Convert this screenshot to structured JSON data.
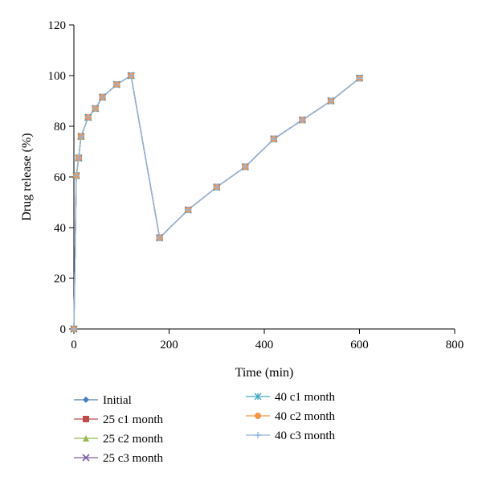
{
  "chart_data": {
    "type": "line",
    "title": "",
    "xlabel": "Time (min)",
    "ylabel": "Drug release (%)",
    "xlim": [
      0,
      800
    ],
    "ylim": [
      0,
      120
    ],
    "xticks": [
      0,
      200,
      400,
      600,
      800
    ],
    "yticks": [
      0,
      20,
      40,
      60,
      80,
      100,
      120
    ],
    "grid": false,
    "legend_position": "bottom",
    "x": [
      0,
      5,
      10,
      15,
      30,
      45,
      60,
      90,
      120,
      180,
      240,
      300,
      360,
      420,
      480,
      540,
      600
    ],
    "series": [
      {
        "name": "Initial",
        "marker": "diamond",
        "color": "#4a7ebb",
        "values": [
          0,
          60.5,
          67.5,
          76,
          83.5,
          87,
          91.5,
          96.5,
          100,
          36,
          47,
          56,
          64,
          75,
          82.5,
          90,
          99
        ]
      },
      {
        "name": "25 c1 month",
        "marker": "square",
        "color": "#be4b48",
        "values": [
          0,
          60.5,
          67.5,
          76,
          83.5,
          87,
          91.5,
          96.5,
          100,
          36,
          47,
          56,
          64,
          75,
          82.5,
          90,
          99
        ]
      },
      {
        "name": "25 c2 month",
        "marker": "triangle",
        "color": "#98b954",
        "values": [
          0,
          60.5,
          67.5,
          76,
          83.5,
          87,
          91.5,
          96.5,
          100,
          36,
          47,
          56,
          64,
          75,
          82.5,
          90,
          99
        ]
      },
      {
        "name": "25 c3 month",
        "marker": "x",
        "color": "#7d60a0",
        "values": [
          0,
          60.5,
          67.5,
          76,
          83.5,
          87,
          91.5,
          96.5,
          100,
          36,
          47,
          56,
          64,
          75,
          82.5,
          90,
          99
        ]
      },
      {
        "name": "40 c1 month",
        "marker": "star",
        "color": "#46aac5",
        "values": [
          0,
          60.5,
          67.5,
          76,
          83.5,
          87,
          91.5,
          96.5,
          100,
          36,
          47,
          56,
          64,
          75,
          82.5,
          90,
          99
        ]
      },
      {
        "name": "40 c2 month",
        "marker": "circle",
        "color": "#f79646",
        "values": [
          0,
          60.5,
          67.5,
          76,
          83.5,
          87,
          91.5,
          96.5,
          100,
          36,
          47,
          56,
          64,
          75,
          82.5,
          90,
          99
        ]
      },
      {
        "name": "40 c3 month",
        "marker": "plus",
        "color": "#8eb4e3",
        "values": [
          0,
          60.5,
          67.5,
          76,
          83.5,
          87,
          91.5,
          96.5,
          100,
          36,
          47,
          56,
          64,
          75,
          82.5,
          90,
          99
        ]
      }
    ]
  }
}
